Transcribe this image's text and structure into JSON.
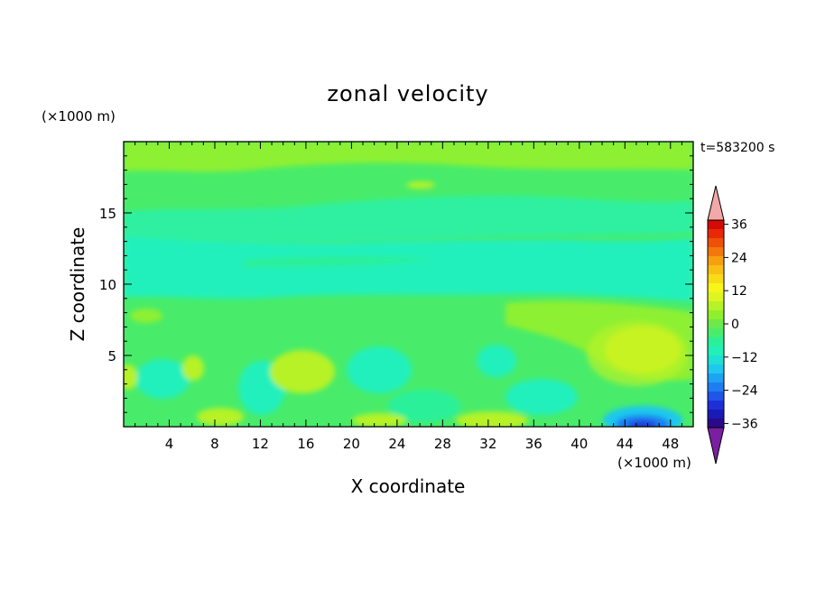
{
  "chart_data": {
    "type": "heatmap",
    "title": "zonal velocity",
    "xlabel": "X coordinate",
    "ylabel": "Z coordinate",
    "x_unit": "(×1000 m)",
    "y_unit": "(×1000 m)",
    "time_label": "t=583200 s",
    "xlim": [
      0,
      50
    ],
    "ylim": [
      0,
      20
    ],
    "x_ticks": [
      4,
      8,
      12,
      16,
      20,
      24,
      28,
      32,
      36,
      40,
      44,
      48
    ],
    "y_ticks": [
      5,
      10,
      15
    ],
    "colorbar": {
      "levels": [
        -42,
        -39,
        -36,
        -33,
        -30,
        -27,
        -24,
        -21,
        -18,
        -15,
        -12,
        -9,
        -6,
        -3,
        0,
        3,
        6,
        9,
        12,
        15,
        18,
        21,
        24,
        27,
        30,
        33,
        36,
        39,
        42
      ],
      "tick_labels": [
        "36",
        "24",
        "12",
        "0",
        "-12",
        "-24",
        "-36"
      ],
      "tick_values": [
        36,
        24,
        12,
        0,
        -12,
        -24,
        -36
      ],
      "colors": [
        "#7a1fa2",
        "#2a0a8a",
        "#1a1ab4",
        "#1f2fd8",
        "#1f55e8",
        "#1e7ef0",
        "#1ea3f2",
        "#1ec8ee",
        "#20e0d6",
        "#22f0b8",
        "#2af09a",
        "#4aec6c",
        "#6ee84a",
        "#8ef02c",
        "#b6f228",
        "#dff520",
        "#f7f51a",
        "#f7dc16",
        "#f7c012",
        "#f7a00e",
        "#f2780a",
        "#ee5008",
        "#e82806",
        "#d40a04",
        "#f2a8a8"
      ],
      "over_color": "#f2a8a8",
      "under_color": "#7a1fa2"
    },
    "field_description_values": {
      "background_level": 0,
      "upper_layer": 3,
      "middle_layer": -6,
      "positive_max": 12,
      "negative_min": -30
    }
  }
}
